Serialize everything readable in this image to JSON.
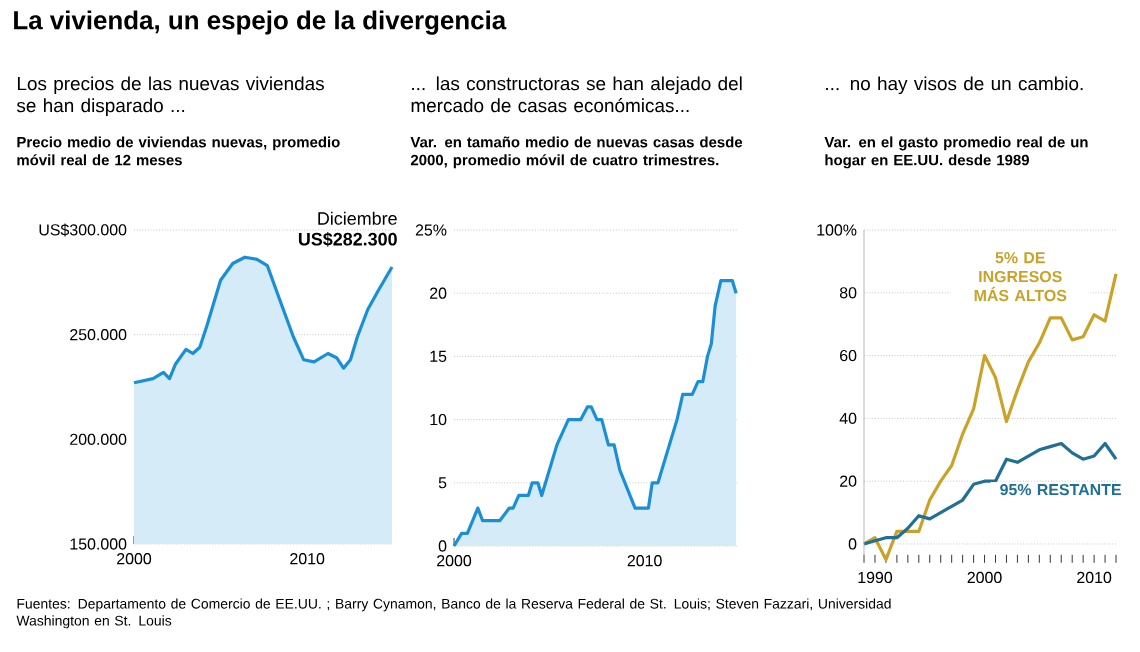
{
  "chart_data": [
    {
      "type": "other",
      "title": "La vivienda, un espejo de la divergencia",
      "annotations": [
        "Fuentes: Departamento de Comercio de EE.UU. ; Barry Cynamon, Banco de la Reserva Federal de St. Louis; Steven Fazzari, Universidad Washington en St. Louis"
      ]
    },
    {
      "type": "area",
      "title": "Los precios de las nuevas viviendas se han disparado ...",
      "subtitle": "Precio medio de viviendas nuevas, promedio móvil real de 12 meses",
      "color": "#1a8fd8",
      "x": [
        2000,
        2001.1,
        2001.7,
        2002.05,
        2002.4,
        2003.0,
        2003.4,
        2003.8,
        2004.2,
        2005.0,
        2005.7,
        2006.4,
        2007.1,
        2007.7,
        2008.4,
        2009.2,
        2009.8,
        2010.4,
        2011.2,
        2011.7,
        2012.1,
        2012.5,
        2012.9,
        2013.5,
        2014.1,
        2014.9
      ],
      "values": [
        227000,
        229000,
        232000,
        229000,
        236000,
        243000,
        241000,
        244000,
        254000,
        276000,
        284000,
        287000,
        286000,
        283000,
        267000,
        249000,
        238000,
        237000,
        241000,
        239000,
        234000,
        238000,
        249000,
        262000,
        271000,
        282300
      ],
      "value_labels": [
        null,
        null,
        null,
        null,
        null,
        null,
        null,
        null,
        null,
        null,
        null,
        null,
        null,
        null,
        null,
        null,
        null,
        null,
        null,
        null,
        null,
        null,
        null,
        null,
        null,
        "US$282.300"
      ],
      "annotations": [
        {
          "text": "Diciembre",
          "x": 2014.9,
          "y": 282300
        }
      ],
      "xlim": [
        2000,
        2014.9
      ],
      "ylim": [
        150000,
        300000
      ],
      "xticks": [
        2000,
        2010
      ],
      "yticks": [
        {
          "value": 150000,
          "label": "150.000"
        },
        {
          "value": 200000,
          "label": "200.000"
        },
        {
          "value": 250000,
          "label": "250.000"
        },
        {
          "value": 300000,
          "label": "US$300.000"
        }
      ],
      "grid": "y",
      "marker": "none"
    },
    {
      "type": "area",
      "title": "... las constructoras se han alejado del mercado de casas económicas...",
      "subtitle": "Var. en tamaño medio de nuevas casas desde 2000, promedio móvil de cuatro trimestres.",
      "color": "#1a8fd8",
      "x": [
        2000.0,
        2000.4,
        2000.7,
        2001.25,
        2001.5,
        2002.4,
        2002.9,
        2003.1,
        2003.4,
        2003.9,
        2004.1,
        2004.4,
        2004.6,
        2005.0,
        2005.4,
        2006.0,
        2006.65,
        2007.0,
        2007.2,
        2007.5,
        2007.75,
        2008.1,
        2008.4,
        2008.7,
        2009.5,
        2010.2,
        2010.4,
        2010.7,
        2011.3,
        2011.7,
        2012.0,
        2012.5,
        2012.8,
        2013.05,
        2013.3,
        2013.5,
        2013.7,
        2014.0,
        2014.6,
        2014.8
      ],
      "values": [
        0,
        1,
        1,
        3,
        2,
        2,
        3,
        3,
        4,
        4,
        5,
        5,
        4,
        6,
        8,
        10,
        10,
        11,
        11,
        10,
        10,
        8,
        8,
        6,
        3,
        3,
        5,
        5,
        8,
        10,
        12,
        12,
        13,
        13,
        15,
        16,
        19,
        21,
        21,
        20
      ],
      "xlim": [
        2000,
        2014.9
      ],
      "ylim": [
        0,
        25
      ],
      "xticks": [
        2000,
        2010
      ],
      "yticks": [
        0,
        5,
        10,
        15,
        20,
        {
          "value": 25,
          "label": "25%"
        }
      ],
      "grid": "y",
      "marker": "none"
    },
    {
      "type": "line",
      "title": "... no hay visos de un cambio.",
      "subtitle": "Var. en el gasto promedio real de un hogar en EE.UU. desde 1989",
      "x": [
        1989,
        1990,
        1991,
        1992,
        1993,
        1994,
        1995,
        1996,
        1997,
        1998,
        1999,
        2000,
        2001,
        2002,
        2003,
        2004,
        2005,
        2006,
        2007,
        2008,
        2009,
        2010,
        2011,
        2012
      ],
      "series": [
        {
          "name": "5% DE INGRESOS MÁS ALTOS",
          "color": "#c9a227",
          "values": [
            0,
            2,
            -5,
            4,
            4,
            4,
            14,
            20,
            25,
            35,
            43,
            60,
            53,
            39,
            49,
            58,
            64,
            72,
            72,
            65,
            66,
            73,
            71,
            86
          ]
        },
        {
          "name": "95% RESTANTE",
          "color": "#1f6f96",
          "values": [
            0,
            1,
            2,
            2,
            5,
            9,
            8,
            10,
            12,
            14,
            19,
            20,
            20,
            27,
            26,
            28,
            30,
            31,
            32,
            29,
            27,
            28,
            32,
            27
          ]
        }
      ],
      "xlim": [
        1989,
        2012
      ],
      "ylim": [
        -6,
        100
      ],
      "xticks": [
        {
          "value": 1989,
          "label": null
        },
        1990,
        {
          "value": 1991,
          "label": null
        },
        {
          "value": 1992,
          "label": null
        },
        {
          "value": 1993,
          "label": null
        },
        {
          "value": 1994,
          "label": null
        },
        {
          "value": 1995,
          "label": null
        },
        {
          "value": 1996,
          "label": null
        },
        {
          "value": 1997,
          "label": null
        },
        {
          "value": 1998,
          "label": null
        },
        {
          "value": 1999,
          "label": null
        },
        2000,
        {
          "value": 2001,
          "label": null
        },
        {
          "value": 2002,
          "label": null
        },
        {
          "value": 2003,
          "label": null
        },
        {
          "value": 2004,
          "label": null
        },
        {
          "value": 2005,
          "label": null
        },
        {
          "value": 2006,
          "label": null
        },
        {
          "value": 2007,
          "label": null
        },
        {
          "value": 2008,
          "label": null
        },
        {
          "value": 2009,
          "label": null
        },
        2010,
        {
          "value": 2011,
          "label": null
        },
        {
          "value": 2012,
          "label": null
        }
      ],
      "yticks": [
        0,
        20,
        40,
        60,
        80,
        {
          "value": 100,
          "label": "100%"
        }
      ],
      "grid": "y",
      "marker": "none"
    }
  ]
}
